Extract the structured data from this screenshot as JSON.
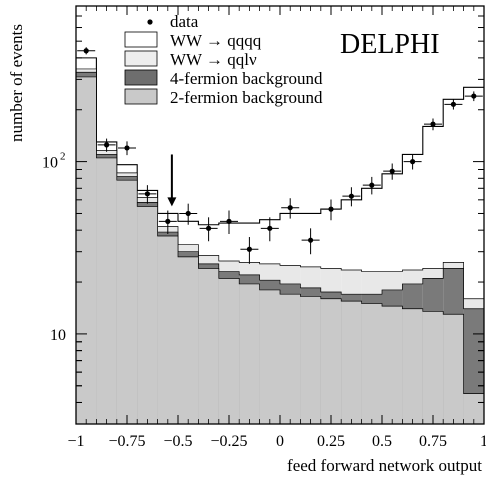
{
  "chart_data": {
    "type": "bar",
    "experiment_label": "DELPHI",
    "xlabel": "feed forward network output",
    "ylabel": "number of events",
    "y_scale": "log",
    "xlim": [
      -1,
      1
    ],
    "ylim": [
      3,
      800
    ],
    "x_ticks": [
      "-1",
      "-0.75",
      "-0.5",
      "-0.25",
      "0",
      "0.25",
      "0.5",
      "0.75",
      "1"
    ],
    "y_ticks": [
      {
        "value": 10,
        "label": "10",
        "sup": ""
      },
      {
        "value": 100,
        "label": "10",
        "sup": "2"
      }
    ],
    "bin_edges": [
      -1,
      -0.9,
      -0.8,
      -0.7,
      -0.6,
      -0.5,
      -0.4,
      -0.3,
      -0.2,
      -0.1,
      0,
      0.1,
      0.2,
      0.3,
      0.4,
      0.5,
      0.6,
      0.7,
      0.8,
      0.9,
      1
    ],
    "legend": [
      {
        "key": "data",
        "label": "data"
      },
      {
        "key": "ww_qqqq",
        "label": "WW → qqqq"
      },
      {
        "key": "ww_qqlv",
        "label": "WW → qqlν"
      },
      {
        "key": "four_fermion",
        "label": "4-fermion background"
      },
      {
        "key": "two_fermion",
        "label": "2-fermion background"
      }
    ],
    "series": [
      {
        "key": "two_fermion",
        "name": "2-fermion background",
        "color": "#c9c9c9",
        "values": [
          310,
          105,
          78,
          55,
          37,
          28,
          24,
          21,
          19.5,
          18,
          17,
          16.5,
          16,
          15.5,
          15,
          14.5,
          14,
          13.5,
          13,
          4.5
        ]
      },
      {
        "key": "four_fermion",
        "name": "4-fermion background",
        "color": "#7a7a7a",
        "values": [
          330,
          110,
          82,
          58,
          39,
          30,
          25.5,
          23,
          22,
          20.5,
          19.5,
          18.5,
          17.5,
          17,
          17,
          18,
          19.5,
          21,
          24,
          14
        ]
      },
      {
        "key": "ww_qqlv",
        "name": "WW → qqlν",
        "color": "#e8e8e8",
        "values": [
          345,
          116,
          86,
          62,
          42,
          33,
          28.5,
          26.5,
          26,
          25.5,
          25,
          24.5,
          24,
          23.5,
          23,
          23,
          23.5,
          24,
          26,
          16
        ]
      },
      {
        "key": "ww_qqqq",
        "name": "WW → qqqq",
        "color": "#ffffff",
        "values": [
          400,
          130,
          96,
          68,
          50,
          45,
          43,
          44,
          44,
          46,
          50,
          50,
          53,
          60,
          70,
          85,
          110,
          160,
          230,
          270
        ]
      }
    ],
    "data_points": {
      "name": "data",
      "x": [
        -0.95,
        -0.85,
        -0.75,
        -0.65,
        -0.55,
        -0.45,
        -0.35,
        -0.25,
        -0.15,
        -0.05,
        0.05,
        0.15,
        0.25,
        0.35,
        0.45,
        0.55,
        0.65,
        0.75,
        0.85,
        0.95
      ],
      "y": [
        440,
        125,
        120,
        65,
        45,
        50,
        41,
        45,
        31,
        41,
        54,
        35,
        53,
        63,
        73,
        88,
        100,
        165,
        215,
        240
      ],
      "err": [
        21,
        11,
        11,
        8,
        7,
        7,
        6.5,
        7,
        5.5,
        6.5,
        7.3,
        6,
        7.3,
        8,
        8.5,
        9.5,
        10,
        13,
        14.5,
        15.5
      ]
    },
    "arrow_annotation": {
      "x": -0.53,
      "y_tip": 55,
      "y_tail": 110
    }
  }
}
